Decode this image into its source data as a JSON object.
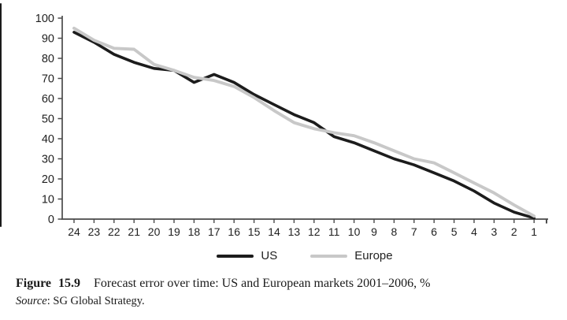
{
  "figure": {
    "caption_label": "Figure 15.9",
    "caption_text": "Forecast error over time: US and European markets 2001–2006, %",
    "source_label": "Source",
    "source_rest": ": SG Global Strategy."
  },
  "chart_data": {
    "type": "line",
    "title": "Forecast error over time: US and European markets 2001–2006, %",
    "xlabel": "",
    "ylabel": "",
    "x_categories": [
      24,
      23,
      22,
      21,
      20,
      19,
      18,
      17,
      16,
      15,
      14,
      13,
      12,
      11,
      10,
      9,
      8,
      7,
      6,
      5,
      4,
      3,
      2,
      1
    ],
    "series": [
      {
        "name": "US",
        "color": "#1c1c1c",
        "values": [
          93,
          88,
          82,
          78,
          75,
          74,
          68,
          72,
          68,
          62,
          57,
          52,
          48,
          41,
          38,
          34,
          30,
          27,
          23,
          19,
          14,
          8,
          3.5,
          0.5
        ]
      },
      {
        "name": "Europe",
        "color": "#c8c8c8",
        "values": [
          95,
          89,
          85,
          84.5,
          77,
          74,
          70.5,
          69,
          66,
          60.5,
          54,
          48,
          45,
          43,
          41.5,
          38,
          34,
          30,
          28,
          23,
          18,
          13,
          7,
          1.5
        ]
      }
    ],
    "ylim": [
      0,
      100
    ],
    "y_ticks": [
      0,
      10,
      20,
      30,
      40,
      50,
      60,
      70,
      80,
      90,
      100
    ],
    "grid": false,
    "legend_position": "bottom-center",
    "x_axis_direction": "descending",
    "axis_color": "#4a4a4a",
    "text_color": "#1f1f1f"
  }
}
